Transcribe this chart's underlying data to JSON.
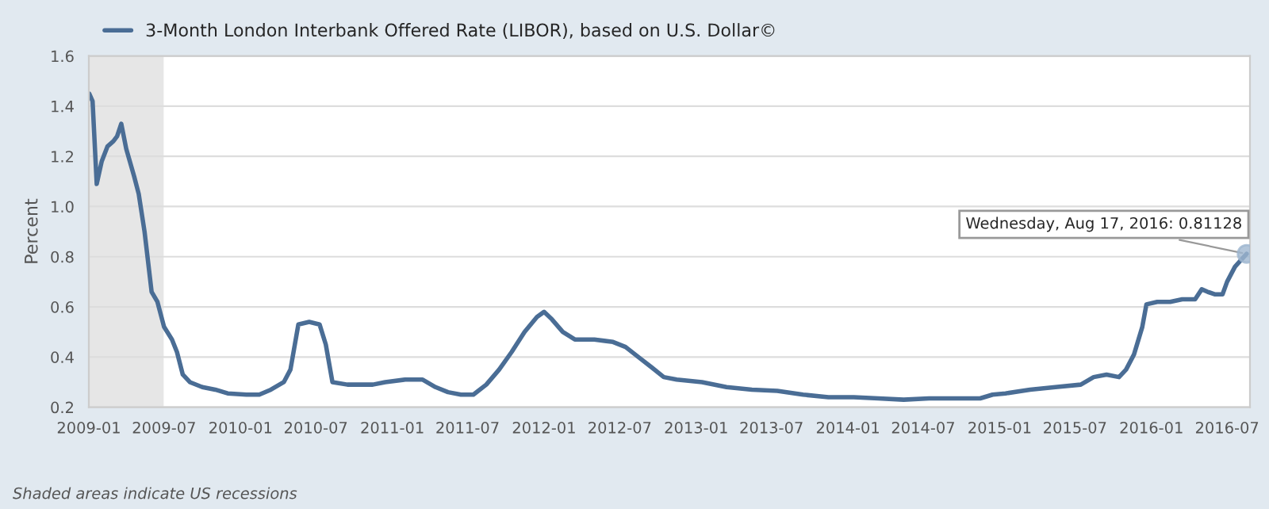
{
  "chart_data": {
    "type": "line",
    "ylabel": "Percent",
    "x": [
      "2009-01-02",
      "2009-01-10",
      "2009-01-20",
      "2009-02-01",
      "2009-02-15",
      "2009-03-01",
      "2009-03-10",
      "2009-03-20",
      "2009-04-01",
      "2009-04-20",
      "2009-05-01",
      "2009-05-15",
      "2009-06-01",
      "2009-06-15",
      "2009-07-01",
      "2009-07-20",
      "2009-08-01",
      "2009-08-15",
      "2009-09-01",
      "2009-10-01",
      "2009-11-01",
      "2009-12-01",
      "2010-01-15",
      "2010-02-15",
      "2010-03-15",
      "2010-04-15",
      "2010-05-01",
      "2010-05-20",
      "2010-06-15",
      "2010-07-10",
      "2010-07-25",
      "2010-08-10",
      "2010-09-15",
      "2010-10-15",
      "2010-11-15",
      "2010-12-15",
      "2011-02-01",
      "2011-03-15",
      "2011-04-15",
      "2011-05-15",
      "2011-06-15",
      "2011-07-15",
      "2011-08-15",
      "2011-09-15",
      "2011-10-15",
      "2011-11-15",
      "2011-12-15",
      "2012-01-01",
      "2012-01-20",
      "2012-02-15",
      "2012-03-15",
      "2012-05-01",
      "2012-06-15",
      "2012-07-15",
      "2012-08-15",
      "2012-09-15",
      "2012-10-15",
      "2012-11-15",
      "2013-01-15",
      "2013-03-15",
      "2013-05-15",
      "2013-07-15",
      "2013-09-15",
      "2013-11-15",
      "2014-01-15",
      "2014-03-15",
      "2014-05-15",
      "2014-07-15",
      "2014-09-15",
      "2014-11-15",
      "2014-12-15",
      "2015-01-15",
      "2015-03-15",
      "2015-05-15",
      "2015-07-15",
      "2015-08-15",
      "2015-09-15",
      "2015-10-15",
      "2015-11-01",
      "2015-11-20",
      "2015-12-10",
      "2015-12-20",
      "2016-01-15",
      "2016-02-15",
      "2016-03-15",
      "2016-04-15",
      "2016-05-01",
      "2016-05-15",
      "2016-06-01",
      "2016-06-20",
      "2016-07-01",
      "2016-07-20",
      "2016-08-17"
    ],
    "series": [
      {
        "name": "3-Month London Interbank Offered Rate (LIBOR), based on U.S. Dollar©",
        "color": "#4a6d95",
        "values": [
          1.45,
          1.42,
          1.09,
          1.18,
          1.24,
          1.26,
          1.28,
          1.33,
          1.23,
          1.12,
          1.05,
          0.9,
          0.66,
          0.62,
          0.52,
          0.47,
          0.42,
          0.33,
          0.3,
          0.28,
          0.27,
          0.255,
          0.25,
          0.25,
          0.27,
          0.3,
          0.35,
          0.53,
          0.54,
          0.53,
          0.45,
          0.3,
          0.29,
          0.29,
          0.29,
          0.3,
          0.31,
          0.31,
          0.28,
          0.26,
          0.25,
          0.25,
          0.29,
          0.35,
          0.42,
          0.5,
          0.56,
          0.58,
          0.55,
          0.5,
          0.47,
          0.47,
          0.46,
          0.44,
          0.4,
          0.36,
          0.32,
          0.31,
          0.3,
          0.28,
          0.27,
          0.265,
          0.25,
          0.24,
          0.24,
          0.235,
          0.23,
          0.235,
          0.235,
          0.235,
          0.25,
          0.255,
          0.27,
          0.28,
          0.29,
          0.32,
          0.33,
          0.32,
          0.35,
          0.41,
          0.52,
          0.61,
          0.62,
          0.62,
          0.63,
          0.63,
          0.67,
          0.66,
          0.65,
          0.65,
          0.7,
          0.76,
          0.81128
        ]
      }
    ],
    "xlim": [
      "2009-01-01",
      "2016-08-25"
    ],
    "xticks": [
      "2009-01",
      "2009-07",
      "2010-01",
      "2010-07",
      "2011-01",
      "2011-07",
      "2012-01",
      "2012-07",
      "2013-01",
      "2013-07",
      "2014-01",
      "2014-07",
      "2015-01",
      "2015-07",
      "2016-01",
      "2016-07"
    ],
    "ylim": [
      0.2,
      1.6
    ],
    "yticks": [
      0.2,
      0.4,
      0.6,
      0.8,
      {
        "value": 1,
        "label": "1.0"
      },
      1.2,
      1.4,
      1.6
    ],
    "grid": "y",
    "legend": "top left",
    "marker": "none",
    "line_style": "solid",
    "bands": [
      {
        "axis": "x",
        "from": "2009-01-01",
        "to": "2009-06-30",
        "label": null,
        "color": "#e6e6e6"
      }
    ],
    "annotations": [
      {
        "text": "Wednesday, Aug 17, 2016: 0.81128",
        "x": "2016-08-17",
        "y": 0.81128
      },
      "Shaded areas indicate US recessions"
    ]
  }
}
